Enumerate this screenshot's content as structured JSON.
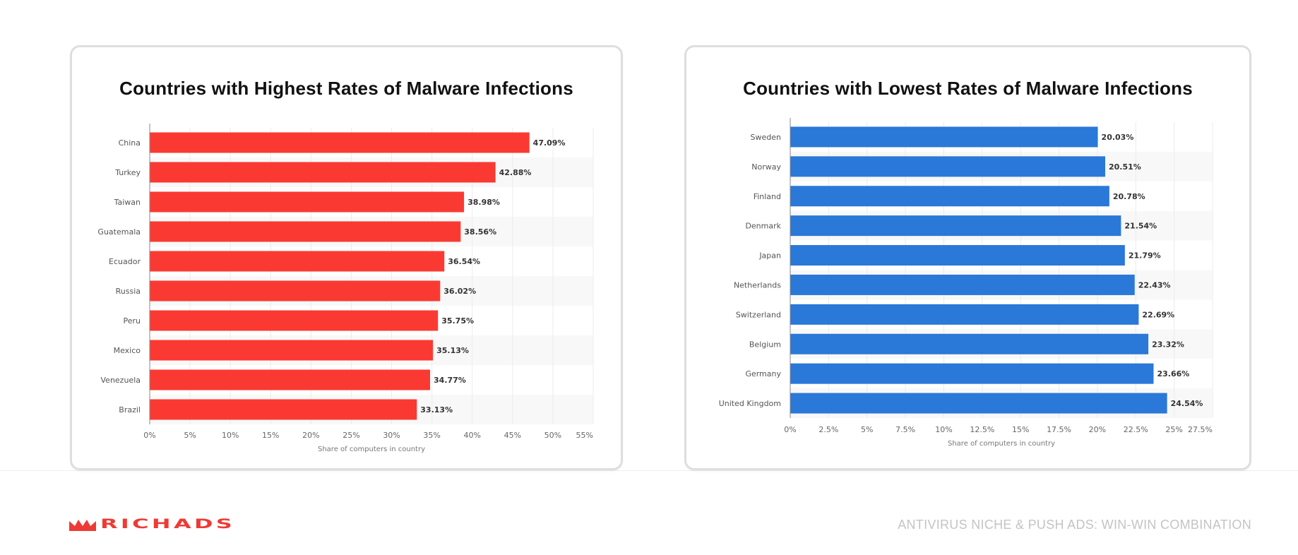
{
  "chart_data": [
    {
      "type": "bar",
      "orientation": "horizontal",
      "title": "Countries with Highest Rates of Malware Infections",
      "categories": [
        "China",
        "Turkey",
        "Taiwan",
        "Guatemala",
        "Ecuador",
        "Russia",
        "Peru",
        "Mexico",
        "Venezuela",
        "Brazil"
      ],
      "values": [
        47.09,
        42.88,
        38.98,
        38.56,
        36.54,
        36.02,
        35.75,
        35.13,
        34.77,
        33.13
      ],
      "value_labels": [
        "47.09%",
        "42.88%",
        "38.98%",
        "38.56%",
        "36.54%",
        "36.02%",
        "35.75%",
        "35.13%",
        "34.77%",
        "33.13%"
      ],
      "xlabel": "Share of computers in country",
      "ylabel": "",
      "xlim": [
        0,
        55
      ],
      "xticks": [
        0,
        5,
        10,
        15,
        20,
        25,
        30,
        35,
        40,
        45,
        50,
        55
      ],
      "xtick_labels": [
        "0%",
        "5%",
        "10%",
        "15%",
        "20%",
        "25%",
        "30%",
        "35%",
        "40%",
        "45%",
        "50%",
        "55%"
      ],
      "grid": true,
      "color": "#fa3a32"
    },
    {
      "type": "bar",
      "orientation": "horizontal",
      "title": "Countries with Lowest Rates of Malware Infections",
      "categories": [
        "Sweden",
        "Norway",
        "Finland",
        "Denmark",
        "Japan",
        "Netherlands",
        "Switzerland",
        "Belgium",
        "Germany",
        "United Kingdom"
      ],
      "values": [
        20.03,
        20.51,
        20.78,
        21.54,
        21.79,
        22.43,
        22.69,
        23.32,
        23.66,
        24.54
      ],
      "value_labels": [
        "20.03%",
        "20.51%",
        "20.78%",
        "21.54%",
        "21.79%",
        "22.43%",
        "22.69%",
        "23.32%",
        "23.66%",
        "24.54%"
      ],
      "xlabel": "Share of computers in country",
      "ylabel": "",
      "xlim": [
        0,
        27.5
      ],
      "xticks": [
        0,
        2.5,
        5,
        7.5,
        10,
        12.5,
        15,
        17.5,
        20,
        22.5,
        25,
        27.5
      ],
      "xtick_labels": [
        "0%",
        "2.5%",
        "5%",
        "7.5%",
        "10%",
        "12.5%",
        "15%",
        "17.5%",
        "20%",
        "22.5%",
        "25%",
        "27.5%"
      ],
      "grid": true,
      "color": "#2a78d8"
    }
  ],
  "footer": {
    "brand": "RICHADS",
    "brand_color": "#ee3a34",
    "tagline": "ANTIVIRUS NICHE & PUSH ADS: WIN-WIN COMBINATION"
  },
  "icons": {
    "logo": "crown-icon"
  }
}
